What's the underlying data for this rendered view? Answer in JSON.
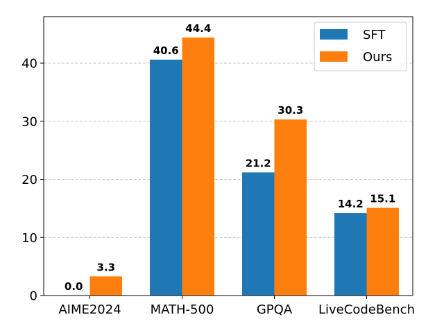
{
  "chart_data": {
    "type": "bar",
    "title": "",
    "xlabel": "",
    "ylabel": "",
    "categories": [
      "AIME2024",
      "MATH-500",
      "GPQA",
      "LiveCodeBench"
    ],
    "series": [
      {
        "name": "SFT",
        "color": "#1f77b4",
        "values": [
          0.0,
          40.6,
          21.2,
          14.2
        ],
        "labels": [
          "0.0",
          "40.6",
          "21.2",
          "14.2"
        ]
      },
      {
        "name": "Ours",
        "color": "#ff7f0e",
        "values": [
          3.3,
          44.4,
          30.3,
          15.1
        ],
        "labels": [
          "3.3",
          "44.4",
          "30.3",
          "15.1"
        ]
      }
    ],
    "ylim": [
      0,
      48
    ],
    "yticks": [
      0,
      10,
      20,
      30,
      40
    ],
    "ytick_labels": [
      "0",
      "10",
      "20",
      "30",
      "40"
    ],
    "grid": "y-dashed",
    "legend": "top-right"
  }
}
